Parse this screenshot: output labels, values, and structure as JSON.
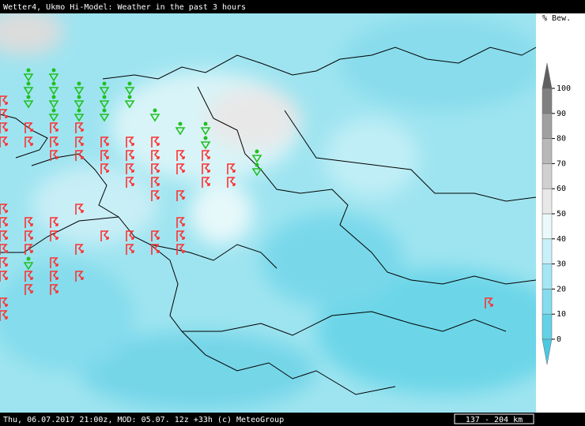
{
  "header": {
    "title": "Wetter4, Ukmo Hi-Model: Weather in the past 3 hours"
  },
  "footer": {
    "text": "Thu, 06.07.2017 21:00z, MOD: 05.07. 12z +33h (c) MeteoGroup",
    "scale": "137 - 204 km"
  },
  "legend": {
    "unit": "% Bew.",
    "ticks": [
      0,
      10,
      20,
      30,
      40,
      50,
      60,
      70,
      80,
      90,
      100
    ]
  }
}
